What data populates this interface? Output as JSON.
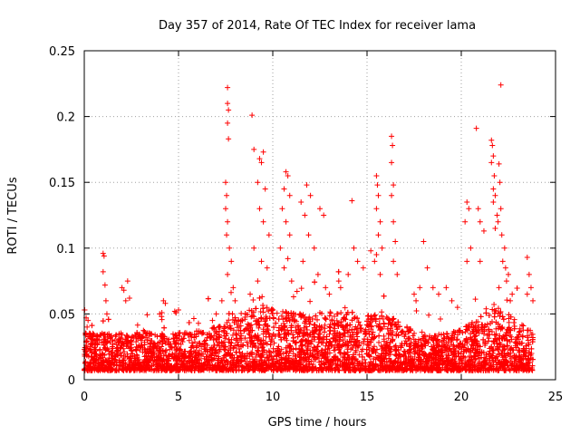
{
  "chart_data": {
    "type": "scatter",
    "title": "Day 357 of 2014, Rate Of TEC Index for receiver lama",
    "xlabel": "GPS time / hours",
    "ylabel": "ROTI / TECUs",
    "xlim": [
      0,
      25
    ],
    "ylim": [
      0,
      0.25
    ],
    "xticks": [
      0,
      5,
      10,
      15,
      20,
      25
    ],
    "yticks": [
      0,
      0.05,
      0.1,
      0.15,
      0.2,
      0.25
    ],
    "xtick_labels": [
      "0",
      "5",
      "10",
      "15",
      "20",
      "25"
    ],
    "ytick_labels": [
      "0",
      "0.05",
      "0.1",
      "0.15",
      "0.2",
      "0.25"
    ],
    "grid": true,
    "marker": "+",
    "color": "#ff0000",
    "series": [
      {
        "name": "ROTI",
        "points": [
          [
            0.1,
            0.047
          ],
          [
            0.15,
            0.04
          ],
          [
            0.2,
            0.045
          ],
          [
            0.3,
            0.035
          ],
          [
            1.0,
            0.096
          ],
          [
            1.05,
            0.094
          ],
          [
            1.0,
            0.082
          ],
          [
            1.1,
            0.072
          ],
          [
            1.15,
            0.06
          ],
          [
            1.2,
            0.05
          ],
          [
            2.0,
            0.07
          ],
          [
            2.1,
            0.068
          ],
          [
            2.2,
            0.06
          ],
          [
            2.3,
            0.075
          ],
          [
            2.4,
            0.062
          ],
          [
            4.0,
            0.05
          ],
          [
            4.1,
            0.048
          ],
          [
            4.2,
            0.06
          ],
          [
            4.3,
            0.058
          ],
          [
            4.8,
            0.052
          ],
          [
            5.0,
            0.053
          ],
          [
            6.8,
            0.045
          ],
          [
            7.0,
            0.05
          ],
          [
            7.3,
            0.06
          ],
          [
            7.6,
            0.222
          ],
          [
            7.6,
            0.21
          ],
          [
            7.65,
            0.205
          ],
          [
            7.6,
            0.195
          ],
          [
            7.65,
            0.183
          ],
          [
            7.5,
            0.15
          ],
          [
            7.55,
            0.14
          ],
          [
            7.5,
            0.13
          ],
          [
            7.6,
            0.12
          ],
          [
            7.55,
            0.11
          ],
          [
            7.7,
            0.1
          ],
          [
            7.8,
            0.09
          ],
          [
            7.6,
            0.08
          ],
          [
            7.9,
            0.07
          ],
          [
            8.0,
            0.06
          ],
          [
            8.9,
            0.201
          ],
          [
            9.0,
            0.175
          ],
          [
            9.3,
            0.168
          ],
          [
            9.5,
            0.173
          ],
          [
            9.4,
            0.165
          ],
          [
            9.2,
            0.15
          ],
          [
            9.6,
            0.145
          ],
          [
            9.3,
            0.13
          ],
          [
            9.5,
            0.12
          ],
          [
            9.8,
            0.11
          ],
          [
            9.0,
            0.1
          ],
          [
            9.4,
            0.09
          ],
          [
            9.7,
            0.085
          ],
          [
            9.2,
            0.075
          ],
          [
            8.8,
            0.065
          ],
          [
            10.7,
            0.158
          ],
          [
            10.8,
            0.155
          ],
          [
            10.6,
            0.145
          ],
          [
            10.9,
            0.14
          ],
          [
            10.5,
            0.13
          ],
          [
            10.7,
            0.12
          ],
          [
            10.9,
            0.11
          ],
          [
            10.4,
            0.1
          ],
          [
            10.8,
            0.092
          ],
          [
            10.6,
            0.085
          ],
          [
            11.0,
            0.075
          ],
          [
            11.5,
            0.135
          ],
          [
            11.7,
            0.125
          ],
          [
            11.8,
            0.148
          ],
          [
            12.0,
            0.14
          ],
          [
            11.9,
            0.11
          ],
          [
            12.2,
            0.1
          ],
          [
            11.6,
            0.09
          ],
          [
            12.5,
            0.13
          ],
          [
            12.7,
            0.125
          ],
          [
            12.4,
            0.08
          ],
          [
            12.8,
            0.07
          ],
          [
            13.0,
            0.065
          ],
          [
            13.5,
            0.075
          ],
          [
            13.6,
            0.07
          ],
          [
            14.0,
            0.08
          ],
          [
            14.2,
            0.136
          ],
          [
            14.3,
            0.1
          ],
          [
            14.5,
            0.09
          ],
          [
            14.8,
            0.085
          ],
          [
            15.2,
            0.098
          ],
          [
            15.4,
            0.09
          ],
          [
            15.5,
            0.155
          ],
          [
            15.55,
            0.148
          ],
          [
            15.6,
            0.14
          ],
          [
            15.5,
            0.13
          ],
          [
            15.7,
            0.12
          ],
          [
            15.6,
            0.11
          ],
          [
            15.8,
            0.1
          ],
          [
            15.5,
            0.095
          ],
          [
            15.7,
            0.08
          ],
          [
            16.3,
            0.185
          ],
          [
            16.35,
            0.178
          ],
          [
            16.3,
            0.165
          ],
          [
            16.4,
            0.148
          ],
          [
            16.3,
            0.14
          ],
          [
            16.4,
            0.12
          ],
          [
            16.5,
            0.105
          ],
          [
            16.4,
            0.09
          ],
          [
            16.6,
            0.08
          ],
          [
            17.5,
            0.065
          ],
          [
            17.6,
            0.06
          ],
          [
            17.8,
            0.07
          ],
          [
            18.0,
            0.105
          ],
          [
            18.2,
            0.085
          ],
          [
            18.5,
            0.07
          ],
          [
            18.8,
            0.065
          ],
          [
            19.2,
            0.07
          ],
          [
            19.5,
            0.06
          ],
          [
            19.8,
            0.055
          ],
          [
            20.3,
            0.135
          ],
          [
            20.4,
            0.13
          ],
          [
            20.2,
            0.12
          ],
          [
            20.3,
            0.09
          ],
          [
            20.5,
            0.1
          ],
          [
            20.8,
            0.191
          ],
          [
            20.9,
            0.13
          ],
          [
            21.0,
            0.12
          ],
          [
            21.2,
            0.113
          ],
          [
            21.0,
            0.09
          ],
          [
            21.6,
            0.182
          ],
          [
            21.65,
            0.178
          ],
          [
            21.7,
            0.17
          ],
          [
            21.6,
            0.165
          ],
          [
            21.75,
            0.155
          ],
          [
            21.7,
            0.145
          ],
          [
            21.8,
            0.14
          ],
          [
            21.7,
            0.135
          ],
          [
            21.9,
            0.125
          ],
          [
            21.8,
            0.115
          ],
          [
            22.0,
            0.164
          ],
          [
            22.05,
            0.15
          ],
          [
            22.1,
            0.13
          ],
          [
            21.95,
            0.12
          ],
          [
            22.15,
            0.11
          ],
          [
            22.3,
            0.1
          ],
          [
            22.2,
            0.09
          ],
          [
            22.35,
            0.085
          ],
          [
            22.5,
            0.08
          ],
          [
            22.0,
            0.07
          ],
          [
            22.4,
            0.075
          ],
          [
            22.7,
            0.065
          ],
          [
            22.6,
            0.06
          ],
          [
            22.1,
            0.224
          ],
          [
            23.5,
            0.093
          ],
          [
            23.6,
            0.08
          ],
          [
            23.7,
            0.07
          ],
          [
            23.5,
            0.065
          ],
          [
            23.8,
            0.06
          ]
        ]
      }
    ]
  }
}
